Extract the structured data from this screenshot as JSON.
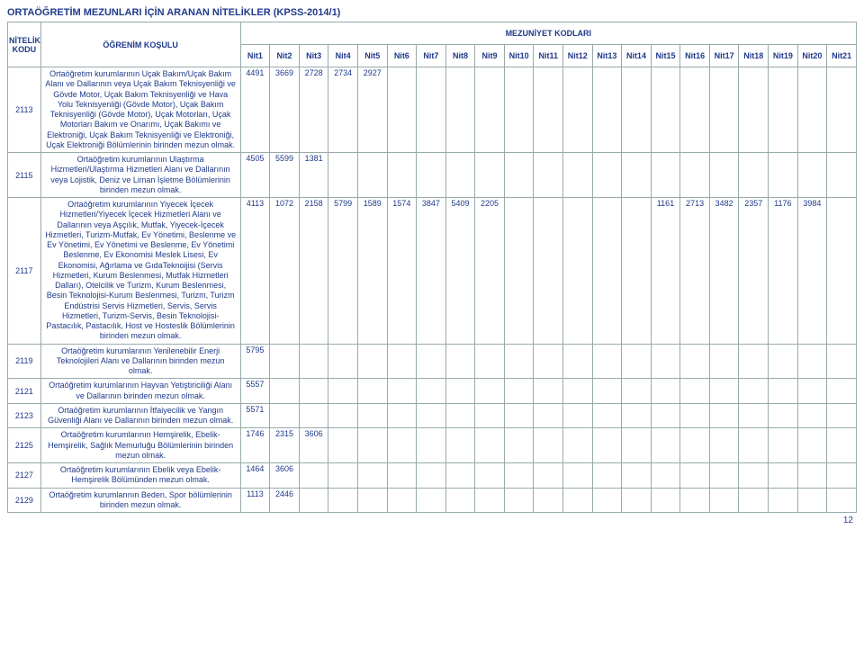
{
  "page": {
    "title": "ORTAÖĞRETİM MEZUNLARI İÇİN ARANAN NİTELİKLER (KPSS-2014/1)",
    "page_number": "12"
  },
  "headers": {
    "nitelik_kodu_line1": "NİTELİK",
    "nitelik_kodu_line2": "KODU",
    "ogrenim_kosulu": "ÖĞRENİM KOŞULU",
    "mezuniyet_kodlari": "MEZUNİYET KODLARI",
    "nits": [
      "Nit1",
      "Nit2",
      "Nit3",
      "Nit4",
      "Nit5",
      "Nit6",
      "Nit7",
      "Nit8",
      "Nit9",
      "Nit10",
      "Nit11",
      "Nit12",
      "Nit13",
      "Nit14",
      "Nit15",
      "Nit16",
      "Nit17",
      "Nit18",
      "Nit19",
      "Nit20",
      "Nit21"
    ]
  },
  "rows": [
    {
      "kodu": "2113",
      "desc": "Ortaöğretim kurumlarının Uçak Bakım/Uçak Bakım Alanı ve Dallarının veya Uçak Bakım Teknisyenliği ve Gövde Motor, Uçak Bakım Teknisyenliği ve Hava Yolu Teknisyenliği (Gövde Motor), Uçak Bakım Teknisyenliği (Gövde Motor), Uçak Motorları, Uçak Motorları Bakım ve Onarımı, Uçak Bakımı ve Elektroniği, Uçak Bakım Teknisyenliği ve Elektroniği, Uçak Elektroniği Bölümlerinin birinden mezun olmak.",
      "cells": [
        "4491",
        "3669",
        "2728",
        "2734",
        "2927",
        "",
        "",
        "",
        "",
        "",
        "",
        "",
        "",
        "",
        "",
        "",
        "",
        "",
        "",
        "",
        ""
      ]
    },
    {
      "kodu": "2115",
      "desc": "Ortaöğretim kurumlarının Ulaştırma Hizmetleri/Ulaştırma Hizmetleri Alanı ve Dallarının veya Lojistik, Deniz ve Liman İşletme Bölümlerinin birinden mezun olmak.",
      "cells": [
        "4505",
        "5599",
        "1381",
        "",
        "",
        "",
        "",
        "",
        "",
        "",
        "",
        "",
        "",
        "",
        "",
        "",
        "",
        "",
        "",
        "",
        ""
      ]
    },
    {
      "kodu": "2117",
      "desc": "Ortaöğretim kurumlarının Yiyecek İçecek Hizmetleri/Yiyecek İçecek Hizmetleri Alanı ve Dallarının veya Aşçılık, Mutfak, Yiyecek-İçecek Hizmetleri, Turizm-Mutfak, Ev Yönetimi, Beslenme ve Ev Yönetimi, Ev Yönetimi ve Beslenme, Ev Yönetimi Beslenme, Ev Ekonomisi Meslek Lisesi, Ev Ekonomisi, Ağırlama ve GıdaTeknoijisi (Servis Hizmetleri, Kurum Beslenmesi, Mutfak Hizmetleri Dalları), Otelcilik ve Turizm, Kurum Beslenmesi, Besin Teknolojisi-Kurum Beslenmesi, Turizm, Turizm Endüstrisi Servis Hizmetleri, Servis, Servis Hizmetleri, Turizm-Servis, Besin Teknolojisi-Pastacılık, Pastacılık, Host ve Hosteslik Bölümlerinin birinden mezun olmak.",
      "cells": [
        "4113",
        "1072",
        "2158",
        "5799",
        "1589",
        "1574",
        "3847",
        "5409",
        "2205",
        "",
        "",
        "",
        "",
        "",
        "1161",
        "2713",
        "3482",
        "2357",
        "1176",
        "3984",
        ""
      ]
    },
    {
      "kodu": "2119",
      "desc": "Ortaöğretim kurumlarının Yenilenebilir Enerji Teknolojileri Alanı ve Dallarının birinden mezun olmak.",
      "cells": [
        "5795",
        "",
        "",
        "",
        "",
        "",
        "",
        "",
        "",
        "",
        "",
        "",
        "",
        "",
        "",
        "",
        "",
        "",
        "",
        "",
        ""
      ]
    },
    {
      "kodu": "2121",
      "desc": "Ortaöğretim kurumlarının Hayvan Yetiştiriciliği Alanı ve Dallarının birinden mezun olmak.",
      "cells": [
        "5557",
        "",
        "",
        "",
        "",
        "",
        "",
        "",
        "",
        "",
        "",
        "",
        "",
        "",
        "",
        "",
        "",
        "",
        "",
        "",
        ""
      ]
    },
    {
      "kodu": "2123",
      "desc": "Ortaöğretim kurumlarının İtfaiyecilik ve Yangın Güvenliği Alanı ve Dallarının birinden mezun olmak.",
      "cells": [
        "5571",
        "",
        "",
        "",
        "",
        "",
        "",
        "",
        "",
        "",
        "",
        "",
        "",
        "",
        "",
        "",
        "",
        "",
        "",
        "",
        ""
      ]
    },
    {
      "kodu": "2125",
      "desc": "Ortaöğretim kurumlarının Hemşirelik, Ebelik-Hemşirelik, Sağlık Memurluğu Bölümlerinin birinden mezun olmak.",
      "cells": [
        "1746",
        "2315",
        "3606",
        "",
        "",
        "",
        "",
        "",
        "",
        "",
        "",
        "",
        "",
        "",
        "",
        "",
        "",
        "",
        "",
        "",
        ""
      ]
    },
    {
      "kodu": "2127",
      "desc": "Ortaöğretim kurumlarının Ebelik veya Ebelik-Hemşirelik Bölümünden mezun olmak.",
      "cells": [
        "1464",
        "3606",
        "",
        "",
        "",
        "",
        "",
        "",
        "",
        "",
        "",
        "",
        "",
        "",
        "",
        "",
        "",
        "",
        "",
        "",
        ""
      ]
    },
    {
      "kodu": "2129",
      "desc": "Ortaöğretim kurumlarının Beden, Spor bölümlerinin birinden mezun olmak.",
      "cells": [
        "1113",
        "2446",
        "",
        "",
        "",
        "",
        "",
        "",
        "",
        "",
        "",
        "",
        "",
        "",
        "",
        "",
        "",
        "",
        "",
        "",
        ""
      ]
    }
  ]
}
